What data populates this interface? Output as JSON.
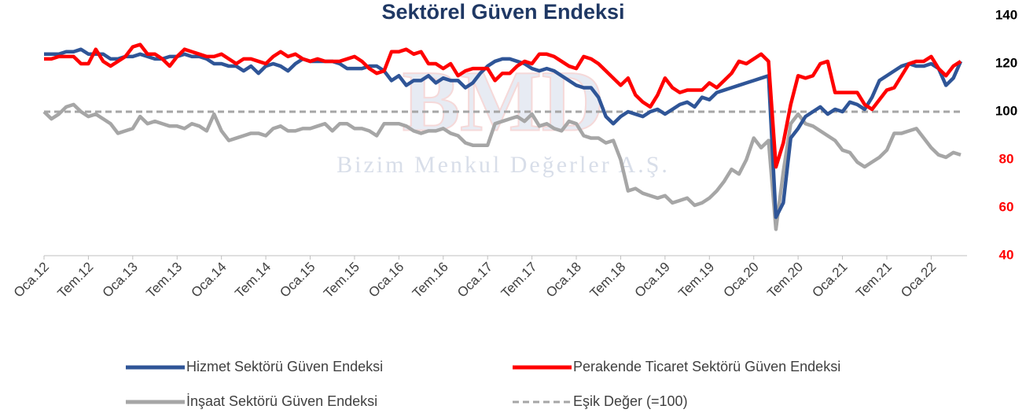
{
  "chart_data": {
    "type": "line",
    "title": "Sektörel Güven Endeksi",
    "watermark": [
      "BMD",
      "Bizim Menkul Değerler A.Ş."
    ],
    "categories": [
      "Oca.12",
      null,
      null,
      null,
      null,
      null,
      "Tem.12",
      null,
      null,
      null,
      null,
      null,
      "Oca.13",
      null,
      null,
      null,
      null,
      null,
      "Tem.13",
      null,
      null,
      null,
      null,
      null,
      "Oca.14",
      null,
      null,
      null,
      null,
      null,
      "Tem.14",
      null,
      null,
      null,
      null,
      null,
      "Oca.15",
      null,
      null,
      null,
      null,
      null,
      "Tem.15",
      null,
      null,
      null,
      null,
      null,
      "Oca.16",
      null,
      null,
      null,
      null,
      null,
      "Tem.16",
      null,
      null,
      null,
      null,
      null,
      "Oca.17",
      null,
      null,
      null,
      null,
      null,
      "Tem.17",
      null,
      null,
      null,
      null,
      null,
      "Oca.18",
      null,
      null,
      null,
      null,
      null,
      "Tem.18",
      null,
      null,
      null,
      null,
      null,
      "Oca.19",
      null,
      null,
      null,
      null,
      null,
      "Tem.19",
      null,
      null,
      null,
      null,
      null,
      "Oca.20",
      null,
      null,
      null,
      null,
      null,
      "Tem.20",
      null,
      null,
      null,
      null,
      null,
      "Oca.21",
      null,
      null,
      null,
      null,
      null,
      "Tem.21",
      null,
      null,
      null,
      null,
      null,
      "Oca.22",
      null,
      null,
      null,
      null
    ],
    "series": [
      {
        "name": "Hizmet Sektörü Güven Endeksi",
        "color": "#2f5597",
        "values": [
          124,
          124,
          124,
          125,
          125,
          126,
          124,
          124,
          124,
          122,
          122,
          123,
          123,
          124,
          123,
          122,
          122,
          123,
          123,
          124,
          123,
          123,
          122,
          120,
          120,
          119,
          119,
          117,
          119,
          116,
          119,
          120,
          119,
          117,
          120,
          122,
          121,
          121,
          121,
          121,
          120,
          118,
          118,
          118,
          119,
          119,
          117,
          113,
          115,
          111,
          113,
          113,
          115,
          112,
          114,
          113,
          113,
          110,
          112,
          116,
          119,
          121,
          122,
          122,
          121,
          120,
          118,
          117,
          118,
          117,
          115,
          113,
          111,
          110,
          110,
          106,
          98,
          95,
          98,
          100,
          99,
          98,
          100,
          101,
          99,
          101,
          103,
          104,
          102,
          106,
          105,
          108,
          109,
          110,
          111,
          112,
          113,
          114,
          115,
          56,
          62,
          89,
          93,
          98,
          100,
          102,
          99,
          101,
          100,
          104,
          103,
          101,
          106,
          113,
          115,
          117,
          119,
          120,
          119,
          119,
          120,
          118,
          111,
          114,
          121
        ]
      },
      {
        "name": "Perakende Ticaret Sektörü Güven Endeksi",
        "color": "#ff0000",
        "values": [
          122,
          122,
          123,
          123,
          123,
          120,
          120,
          126,
          121,
          119,
          121,
          123,
          127,
          128,
          124,
          124,
          122,
          119,
          123,
          126,
          125,
          124,
          123,
          123,
          124,
          122,
          120,
          122,
          122,
          121,
          120,
          123,
          125,
          123,
          124,
          122,
          121,
          122,
          121,
          121,
          121,
          122,
          123,
          121,
          118,
          116,
          117,
          125,
          125,
          126,
          124,
          125,
          120,
          120,
          118,
          120,
          115,
          117,
          118,
          118,
          118,
          113,
          116,
          116,
          119,
          121,
          120,
          124,
          124,
          123,
          121,
          119,
          118,
          123,
          122,
          120,
          117,
          114,
          111,
          114,
          107,
          104,
          102,
          107,
          114,
          110,
          108,
          109,
          109,
          109,
          112,
          110,
          113,
          116,
          121,
          120,
          122,
          124,
          121,
          77,
          87,
          103,
          115,
          114,
          115,
          120,
          121,
          108,
          108,
          108,
          108,
          103,
          101,
          105,
          109,
          110,
          115,
          120,
          121,
          121,
          123,
          118,
          115,
          119,
          121
        ]
      },
      {
        "name": "İnşaat Sektörü Güven Endeksi",
        "color": "#a6a6a6",
        "values": [
          100,
          97,
          99,
          102,
          103,
          100,
          98,
          99,
          97,
          95,
          91,
          92,
          93,
          98,
          95,
          96,
          95,
          94,
          94,
          93,
          95,
          94,
          92,
          99,
          92,
          88,
          89,
          90,
          91,
          91,
          90,
          93,
          94,
          92,
          92,
          93,
          93,
          94,
          95,
          92,
          95,
          95,
          93,
          93,
          92,
          90,
          95,
          95,
          95,
          94,
          92,
          91,
          92,
          92,
          93,
          91,
          90,
          87,
          86,
          86,
          86,
          95,
          96,
          97,
          98,
          96,
          99,
          94,
          95,
          93,
          92,
          96,
          95,
          90,
          89,
          89,
          87,
          88,
          80,
          67,
          68,
          66,
          65,
          64,
          65,
          62,
          63,
          64,
          61,
          62,
          64,
          67,
          71,
          76,
          74,
          80,
          89,
          85,
          88,
          51,
          75,
          95,
          99,
          95,
          94,
          92,
          90,
          88,
          84,
          83,
          79,
          77,
          79,
          81,
          84,
          91,
          91,
          92,
          93,
          89,
          85,
          82,
          81,
          83,
          82
        ]
      }
    ],
    "threshold": {
      "name": "Eşik Değer (=100)",
      "value": 100,
      "color": "#a6a6a6",
      "dashed": true
    },
    "ylim": [
      40,
      140
    ],
    "yticks": [
      40,
      60,
      80,
      100,
      120,
      140
    ],
    "ytick_colors": [
      "#ff0000",
      "#ff0000",
      "#ff0000",
      "#000000",
      "#000000",
      "#000000"
    ],
    "y_axis_side": "right",
    "grid": false,
    "legend": "bottom"
  }
}
